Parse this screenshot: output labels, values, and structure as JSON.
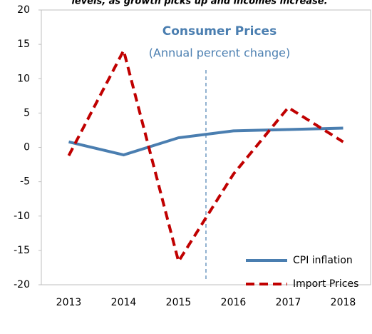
{
  "chart_data": {
    "type": "line",
    "caption": "levels, as growth picks up and incomes increase.",
    "title": "Consumer Prices",
    "subtitle": "(Annual percent change)",
    "categories": [
      "2013",
      "2014",
      "2015",
      "2016",
      "2017",
      "2018"
    ],
    "series": [
      {
        "name": "CPI inflation",
        "color": "#4a7eb0",
        "dash": false,
        "values": [
          0.8,
          -1.1,
          1.4,
          2.4,
          2.6,
          2.8
        ]
      },
      {
        "name": "Import Prices",
        "color": "#c00000",
        "dash": true,
        "values": [
          -1.2,
          14.1,
          -16.6,
          -3.9,
          5.8,
          0.8
        ]
      }
    ],
    "ylim": [
      -20,
      20
    ],
    "yticks": [
      -20,
      -15,
      -10,
      -5,
      0,
      5,
      10,
      15,
      20
    ],
    "legend": "lower right"
  }
}
